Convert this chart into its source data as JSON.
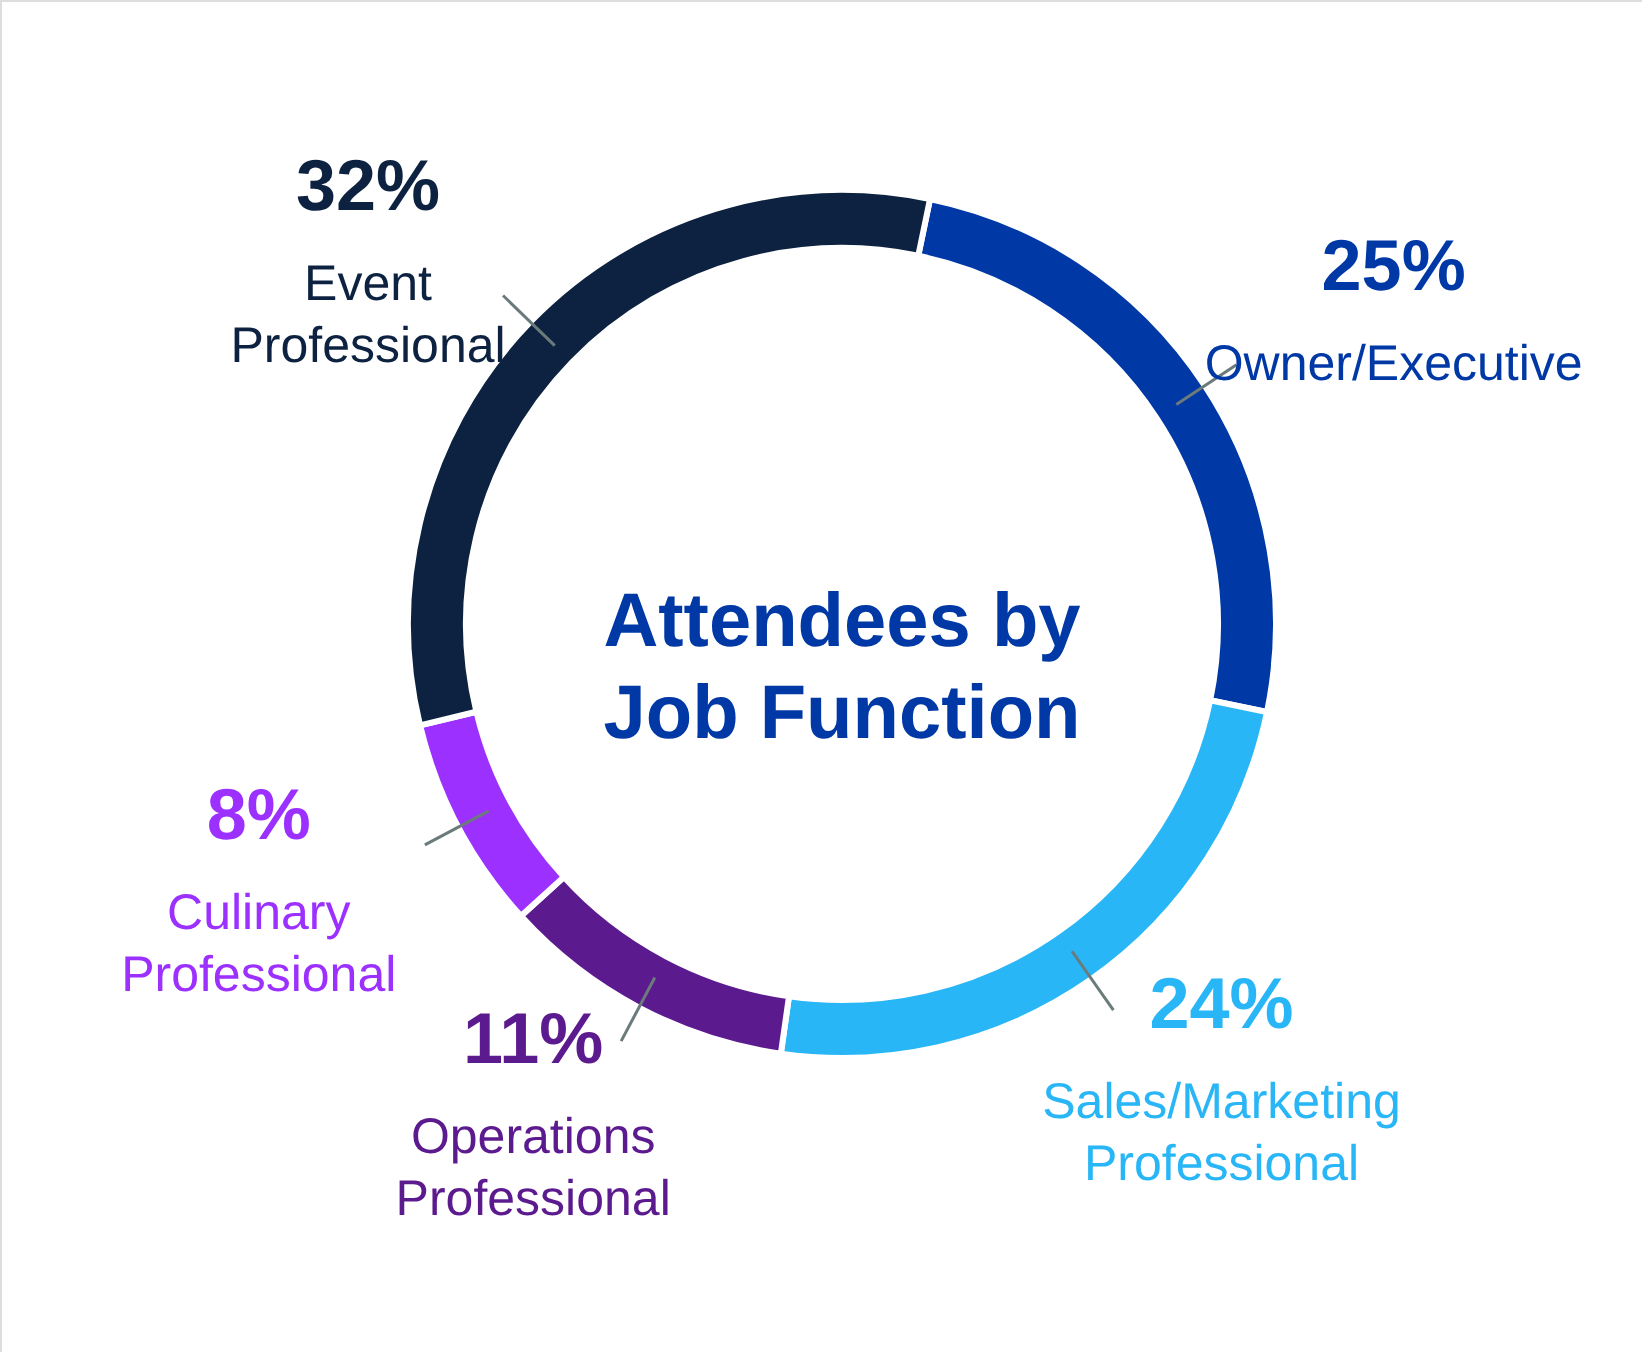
{
  "chart_data": {
    "type": "donut",
    "title": "Attendees by Job Function",
    "categories": [
      "Owner/Executive",
      "Sales/Marketing Professional",
      "Operations Professional",
      "Culinary Professional",
      "Event Professional"
    ],
    "values": [
      25,
      24,
      11,
      8,
      32
    ],
    "colors": [
      "#0039a6",
      "#29b6f6",
      "#5c1a8f",
      "#9b30ff",
      "#0d2240"
    ],
    "value_labels": [
      "25%",
      "24%",
      "11%",
      "8%",
      "32%"
    ]
  }
}
